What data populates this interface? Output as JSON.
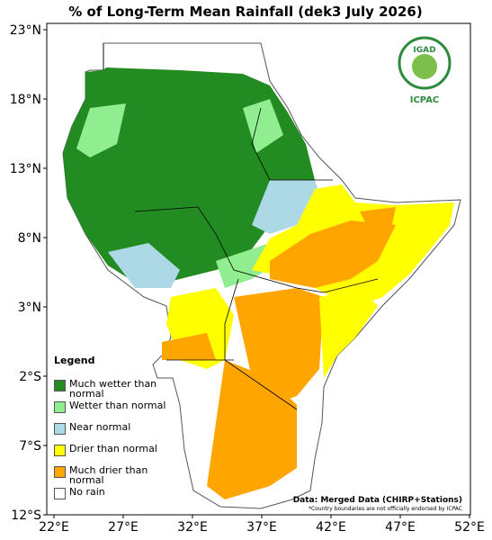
{
  "title": "% of Long-Term Mean Rainfall (dek3 July 2026)",
  "latitude_labels": [
    "23°N",
    "18°N",
    "13°N",
    "8°N",
    "3°N",
    "2°S",
    "7°S",
    "12°S"
  ],
  "longitude_labels": [
    "22°E",
    "27°E",
    "32°E",
    "37°E",
    "42°E",
    "47°E",
    "52°E"
  ],
  "legend": {
    "title": "Legend",
    "items": [
      {
        "label": "Much wetter than normal",
        "color": "#228b22"
      },
      {
        "label": "Wetter than normal",
        "color": "#90ee90"
      },
      {
        "label": "Near normal",
        "color": "#add8e6"
      },
      {
        "label": "Drier than normal",
        "color": "#ffff00"
      },
      {
        "label": "Much drier than normal",
        "color": "#ffa500"
      },
      {
        "label": "No rain",
        "color": "#ffffff"
      }
    ]
  },
  "source": "Data: Merged Data (CHIRP+Stations)",
  "disclaimer": "*Country boundaries are not officially endorsed by ICPAC",
  "logo": {
    "name": "IGAD",
    "org": "ICPAC"
  }
}
